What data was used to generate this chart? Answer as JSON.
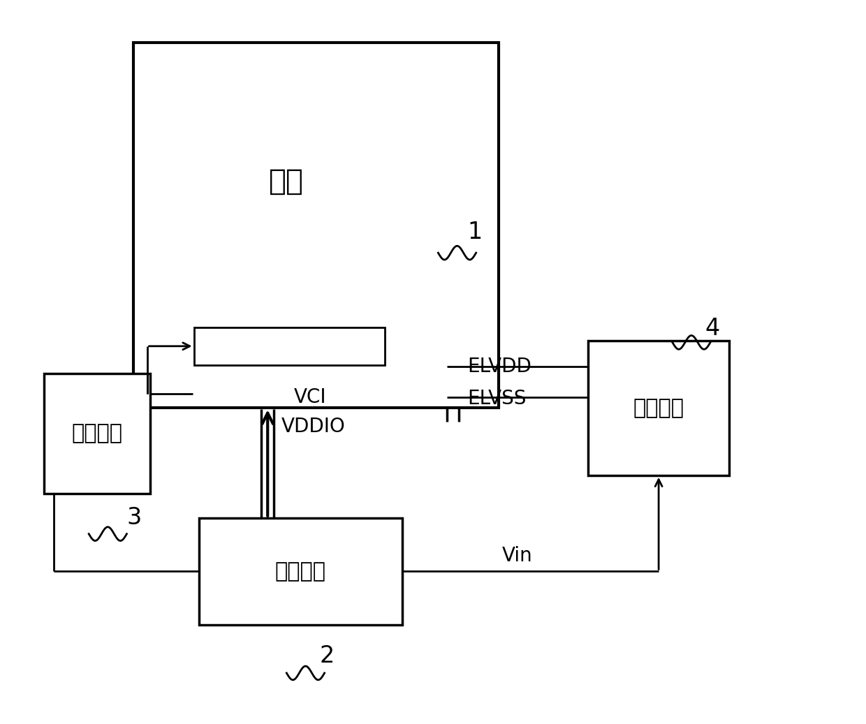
{
  "bg_color": "#ffffff",
  "line_color": "#000000",
  "font_color": "#000000",
  "load_label": "负载",
  "driver_label": "驱动芯片",
  "system_label": "系统平台",
  "power_label": "电源芯片",
  "label_VCI": "VCI",
  "label_VDDIO": "VDDIO",
  "label_ELVDD": "ELVDD",
  "label_ELVSS": "ELVSS",
  "label_Vin": "Vin",
  "num1": "1",
  "num2": "2",
  "num3": "3",
  "num4": "4"
}
